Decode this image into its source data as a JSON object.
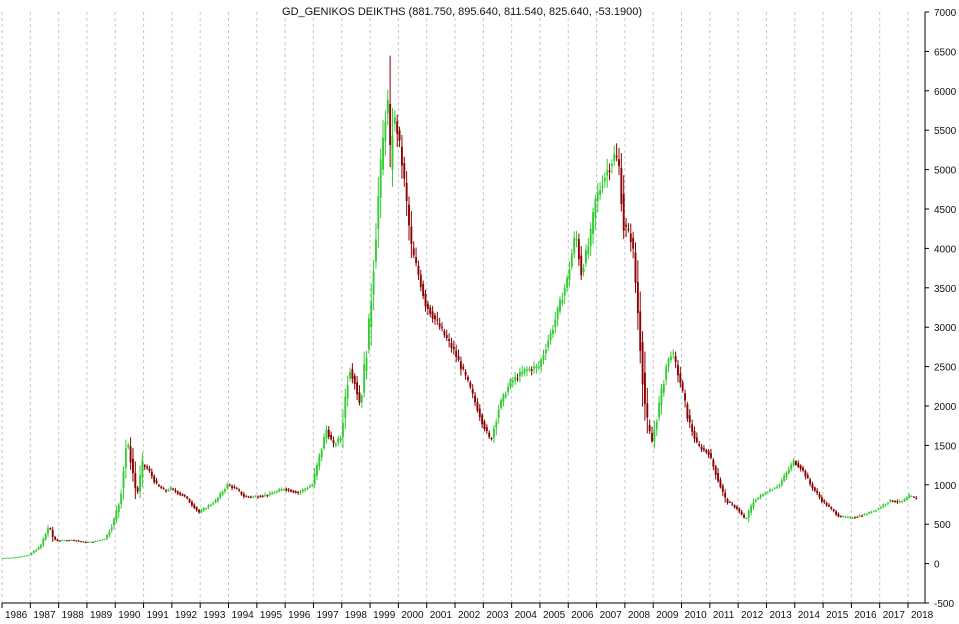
{
  "chart_data": {
    "type": "candlestick",
    "title": "GD_GENIKOS DEIKTHS (881.750, 895.640, 811.540, 825.640, -53.1900)",
    "xlabel": "",
    "ylabel": "",
    "x_range": [
      1986.0,
      2018.6
    ],
    "ylim": [
      -500,
      7000
    ],
    "y_ticks": [
      -500,
      0,
      500,
      1000,
      1500,
      2000,
      2500,
      3000,
      3500,
      4000,
      4500,
      5000,
      5500,
      6000,
      6500,
      7000
    ],
    "y_tick_labels": [
      "-500",
      "0",
      "500",
      "1000",
      "1500",
      "2000",
      "2500",
      "3000",
      "3500",
      "4000",
      "4500",
      "5000",
      "5500",
      "6000",
      "6500",
      "7000"
    ],
    "x_ticks": [
      1986,
      1987,
      1988,
      1989,
      1990,
      1991,
      1992,
      1993,
      1994,
      1995,
      1996,
      1997,
      1998,
      1999,
      2000,
      2001,
      2002,
      2003,
      2004,
      2005,
      2006,
      2007,
      2008,
      2009,
      2010,
      2011,
      2012,
      2013,
      2014,
      2015,
      2016,
      2017,
      2018
    ],
    "x_tick_labels": [
      "1986",
      "1987",
      "1988",
      "1989",
      "1990",
      "1991",
      "1992",
      "1993",
      "1994",
      "1995",
      "1996",
      "1997",
      "1998",
      "1999",
      "2000",
      "2001",
      "2002",
      "2003",
      "2004",
      "2005",
      "2006",
      "2007",
      "2008",
      "2009",
      "2010",
      "2011",
      "2012",
      "2013",
      "2014",
      "2015",
      "2016",
      "2017",
      "2018"
    ],
    "grid": "vertical dashed",
    "up_color": "#33cc33",
    "down_color": "#8b0000",
    "series": [
      {
        "points": [
          [
            1986.0,
            70
          ],
          [
            1986.5,
            80
          ],
          [
            1987.0,
            110
          ],
          [
            1987.4,
            220
          ],
          [
            1987.7,
            480
          ],
          [
            1987.85,
            320
          ],
          [
            1988.0,
            290
          ],
          [
            1988.5,
            300
          ],
          [
            1989.0,
            270
          ],
          [
            1989.3,
            280
          ],
          [
            1989.7,
            320
          ],
          [
            1990.0,
            550
          ],
          [
            1990.2,
            800
          ],
          [
            1990.45,
            1580
          ],
          [
            1990.6,
            1300
          ],
          [
            1990.8,
            850
          ],
          [
            1991.0,
            1250
          ],
          [
            1991.2,
            1200
          ],
          [
            1991.5,
            1000
          ],
          [
            1991.8,
            920
          ],
          [
            1992.0,
            950
          ],
          [
            1992.5,
            850
          ],
          [
            1993.0,
            650
          ],
          [
            1993.2,
            700
          ],
          [
            1993.6,
            800
          ],
          [
            1994.0,
            1000
          ],
          [
            1994.3,
            950
          ],
          [
            1994.6,
            850
          ],
          [
            1995.0,
            850
          ],
          [
            1995.5,
            880
          ],
          [
            1996.0,
            950
          ],
          [
            1996.5,
            900
          ],
          [
            1997.0,
            1000
          ],
          [
            1997.5,
            1700
          ],
          [
            1997.75,
            1500
          ],
          [
            1998.0,
            1600
          ],
          [
            1998.3,
            2500
          ],
          [
            1998.5,
            2300
          ],
          [
            1998.7,
            2000
          ],
          [
            1999.0,
            3000
          ],
          [
            1999.3,
            4500
          ],
          [
            1999.65,
            6000
          ],
          [
            1999.75,
            5000
          ],
          [
            1999.85,
            5700
          ],
          [
            2000.0,
            5500
          ],
          [
            2000.2,
            5000
          ],
          [
            2000.5,
            4000
          ],
          [
            2000.8,
            3600
          ],
          [
            2001.0,
            3300
          ],
          [
            2001.5,
            3000
          ],
          [
            2002.0,
            2700
          ],
          [
            2002.5,
            2300
          ],
          [
            2002.8,
            2000
          ],
          [
            2003.0,
            1800
          ],
          [
            2003.3,
            1550
          ],
          [
            2003.6,
            2000
          ],
          [
            2004.0,
            2300
          ],
          [
            2004.5,
            2450
          ],
          [
            2005.0,
            2500
          ],
          [
            2005.5,
            3000
          ],
          [
            2006.0,
            3600
          ],
          [
            2006.3,
            4200
          ],
          [
            2006.5,
            3700
          ],
          [
            2006.8,
            4100
          ],
          [
            2007.0,
            4600
          ],
          [
            2007.3,
            4900
          ],
          [
            2007.7,
            5200
          ],
          [
            2007.85,
            5000
          ],
          [
            2008.0,
            4300
          ],
          [
            2008.3,
            4100
          ],
          [
            2008.5,
            3200
          ],
          [
            2008.8,
            1800
          ],
          [
            2009.0,
            1550
          ],
          [
            2009.3,
            2100
          ],
          [
            2009.5,
            2500
          ],
          [
            2009.7,
            2700
          ],
          [
            2010.0,
            2300
          ],
          [
            2010.3,
            1800
          ],
          [
            2010.6,
            1500
          ],
          [
            2011.0,
            1400
          ],
          [
            2011.3,
            1100
          ],
          [
            2011.6,
            800
          ],
          [
            2012.0,
            700
          ],
          [
            2012.3,
            550
          ],
          [
            2012.6,
            800
          ],
          [
            2013.0,
            900
          ],
          [
            2013.5,
            1000
          ],
          [
            2014.0,
            1300
          ],
          [
            2014.3,
            1200
          ],
          [
            2014.6,
            1000
          ],
          [
            2015.0,
            800
          ],
          [
            2015.3,
            700
          ],
          [
            2015.6,
            600
          ],
          [
            2016.0,
            580
          ],
          [
            2016.5,
            620
          ],
          [
            2017.0,
            700
          ],
          [
            2017.4,
            800
          ],
          [
            2017.8,
            780
          ],
          [
            2018.1,
            860
          ],
          [
            2018.3,
            826
          ]
        ]
      }
    ]
  }
}
